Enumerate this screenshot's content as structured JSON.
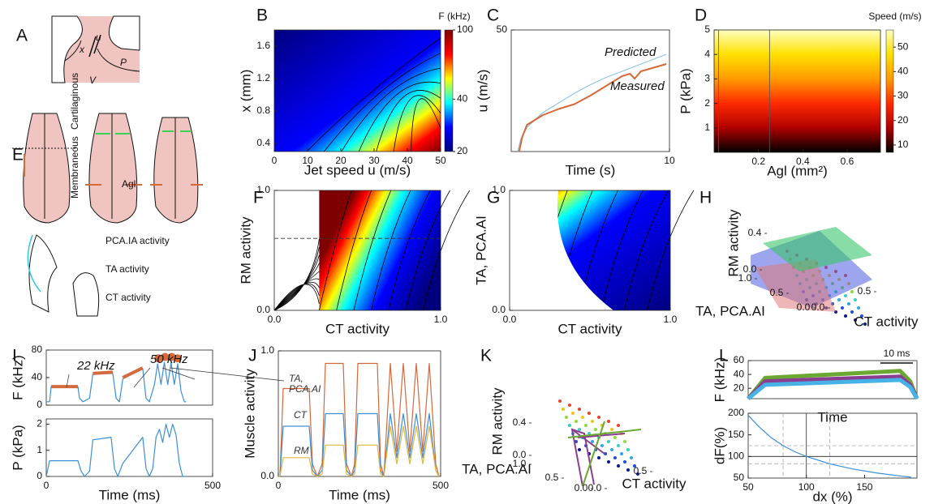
{
  "chart_data": [
    {
      "type": "diagram",
      "panel": "A",
      "labels": [
        "x",
        "u",
        "P",
        "V"
      ]
    },
    {
      "type": "heatmap",
      "panel": "B",
      "xlabel": "Jet speed u (m/s)",
      "ylabel": "x (mm)",
      "xlim": [
        0,
        50
      ],
      "ylim": [
        0.3,
        1.8
      ],
      "xticks": [
        0,
        10,
        20,
        30,
        40,
        50
      ],
      "yticks": [
        0.4,
        0.8,
        1.2,
        1.6
      ],
      "colormap": "jet",
      "colorbar_title": "F (kHz)",
      "clim": [
        20,
        100
      ],
      "clog": true,
      "cticks": [
        20,
        40,
        100
      ]
    },
    {
      "type": "line",
      "panel": "C",
      "xlabel": "Time (s)",
      "ylabel": "u (m/s)",
      "xlim": [
        0,
        10
      ],
      "ylim": [
        0,
        50
      ],
      "xticks": [
        10
      ],
      "yticks": [
        50
      ],
      "series": [
        {
          "name": "Predicted",
          "color": "#8cc4e8",
          "width": 1.2,
          "x": [
            0.4,
            0.6,
            1,
            2,
            3,
            4,
            5,
            6,
            7,
            8,
            9,
            9.8
          ],
          "values": [
            0,
            5,
            10,
            16,
            20,
            24,
            27.5,
            30.5,
            33,
            35.5,
            38,
            40
          ]
        },
        {
          "name": "Measured",
          "color": "#d4693a",
          "width": 2,
          "x": [
            0.5,
            0.7,
            1,
            2,
            3,
            4,
            5,
            6,
            7,
            7.5,
            7.8,
            8.2,
            9,
            9.8
          ],
          "values": [
            0,
            6,
            11,
            15,
            17.5,
            19.5,
            23,
            27,
            31,
            32,
            30,
            33,
            34.5,
            36
          ]
        }
      ]
    },
    {
      "type": "heatmap",
      "panel": "D",
      "xlabel": "Agl (mm²)",
      "ylabel": "P (kPa)",
      "xlim": [
        0,
        0.75
      ],
      "ylim": [
        0,
        5
      ],
      "xticks": [
        0.2,
        0.4,
        0.6
      ],
      "yticks": [
        1,
        2,
        3,
        4,
        5
      ],
      "colormap": "hot",
      "colorbar_title": "Speed (m/s)",
      "clim": [
        7,
        57
      ],
      "clog": false,
      "cticks": [
        10,
        20,
        30,
        40,
        50
      ],
      "vlines": [
        0.02,
        0.25
      ]
    },
    {
      "type": "diagram",
      "panel": "E",
      "labels": [
        "Cartilaginous",
        "Membraneous",
        "Agl",
        "PCA.IA activity",
        "TA activity",
        "CT activity"
      ],
      "label_colors": [
        null,
        null,
        null,
        "#39d353",
        "#d4693a",
        "#2fc7e6"
      ]
    },
    {
      "type": "heatmap",
      "panel": "F",
      "xlabel": "CT activity",
      "ylabel": "RM activity",
      "xlim": [
        0,
        1
      ],
      "ylim": [
        0,
        1
      ],
      "xticks": [
        {
          "value": 0,
          "label": "0.0"
        },
        {
          "value": 1,
          "label": "1.0"
        }
      ],
      "yticks": [
        {
          "value": 0,
          "label": "0.0"
        },
        {
          "value": 1,
          "label": "1.0"
        }
      ],
      "colormap": "jet",
      "hlines": [
        0.6
      ]
    },
    {
      "type": "heatmap",
      "panel": "G",
      "xlabel": "CT activity",
      "ylabel": "TA, PCA.AI",
      "xlim": [
        0,
        1
      ],
      "ylim": [
        0,
        1
      ],
      "xticks": [
        {
          "value": 0,
          "label": "0.0"
        },
        {
          "value": 1,
          "label": "1.0"
        }
      ],
      "yticks": [
        {
          "value": 0,
          "label": "0.0"
        },
        {
          "value": 1,
          "label": "1.0"
        }
      ],
      "colormap": "jet"
    },
    {
      "type": "surface3d",
      "panel": "H",
      "zlabel": "RM activity",
      "ylabel": "TA, PCA.AI",
      "xlabel": "CT activity",
      "zticks": [
        {
          "value": 0,
          "label": "0.0"
        },
        0.4
      ],
      "yticks": [
        {
          "value": 1,
          "label": "1.0"
        },
        0.5,
        {
          "value": 0,
          "label": "0.0"
        }
      ],
      "xticks": [
        {
          "value": 0,
          "label": "0.0"
        },
        0.5
      ]
    },
    {
      "type": "line",
      "panel": "I",
      "ylabel": "F (kHz)",
      "xlim": [
        0,
        500
      ],
      "ylim": [
        0,
        80
      ],
      "yticks": [
        0,
        40,
        80
      ],
      "annotations": [
        "22 kHz",
        "50 kHz"
      ],
      "series": [
        {
          "color": "#3b8fd6",
          "width": 1.2,
          "x": [
            0,
            10,
            15,
            95,
            100,
            110,
            130,
            140,
            200,
            210,
            220,
            230,
            290,
            300,
            310,
            325,
            335,
            345,
            355,
            365,
            375,
            385,
            395,
            405,
            415,
            420
          ],
          "values": [
            5,
            5,
            27,
            27,
            10,
            5,
            10,
            45,
            46,
            10,
            5,
            38,
            53,
            10,
            5,
            30,
            60,
            30,
            62,
            30,
            62,
            30,
            60,
            20,
            5,
            5
          ]
        },
        {
          "color": "#d4693a",
          "width": 4,
          "x": [
            15,
            95,
            96,
            140,
            200,
            201,
            230,
            290
          ],
          "values": [
            27,
            27,
            null,
            46,
            48,
            null,
            40,
            54
          ]
        },
        {
          "color": "#d4693a",
          "markers": true,
          "x": [
            337,
            357,
            377,
            395
          ],
          "values": [
            68,
            70,
            70,
            68
          ]
        }
      ]
    },
    {
      "type": "line",
      "ylabel": "P (kPa)",
      "xlabel": "Time (ms)",
      "xlim": [
        0,
        500
      ],
      "ylim": [
        0,
        2.2
      ],
      "xticks": [
        0,
        500
      ],
      "yticks": [
        0,
        1,
        2
      ],
      "series": [
        {
          "color": "#3b8fd6",
          "width": 1.2,
          "x": [
            0,
            10,
            20,
            95,
            105,
            115,
            130,
            140,
            195,
            205,
            215,
            230,
            290,
            300,
            310,
            320,
            330,
            340,
            350,
            360,
            370,
            380,
            390,
            400,
            410,
            420
          ],
          "values": [
            0,
            0.6,
            0.6,
            0.6,
            0.2,
            0,
            0.2,
            1.4,
            1.5,
            0.3,
            0,
            0.5,
            1.5,
            0.3,
            0,
            0.3,
            1.5,
            1.8,
            1.3,
            2.0,
            1.5,
            2.0,
            1.6,
            0.5,
            0,
            0
          ]
        }
      ]
    },
    {
      "type": "line",
      "panel": "J",
      "ylabel": "Muscle activity",
      "xlabel": "Time (ms)",
      "xlim": [
        0,
        500
      ],
      "ylim": [
        0,
        1
      ],
      "xticks": [
        0,
        500
      ],
      "yticks": [
        {
          "value": 0,
          "label": "0.0"
        },
        {
          "value": 1,
          "label": "1.0"
        }
      ],
      "x": [
        0,
        5,
        15,
        95,
        105,
        120,
        135,
        145,
        200,
        210,
        225,
        235,
        245,
        305,
        315,
        325,
        345,
        365,
        385,
        405,
        425,
        445,
        465,
        485,
        495
      ],
      "series": [
        {
          "name": "TA, PCA.AI",
          "color": "#d4693a",
          "width": 1.2,
          "values": [
            0,
            0,
            0.7,
            0.7,
            0.1,
            0,
            0.1,
            0.9,
            0.9,
            0.1,
            0,
            0.1,
            0.9,
            0.9,
            0.1,
            0,
            0.9,
            0.2,
            0.9,
            0.2,
            0.9,
            0.2,
            0.9,
            0.1,
            0
          ]
        },
        {
          "name": "CT",
          "color": "#3b8fd6",
          "width": 1.2,
          "values": [
            0,
            0,
            0.4,
            0.4,
            0.05,
            0,
            0.05,
            0.5,
            0.5,
            0.05,
            0,
            0.05,
            0.5,
            0.5,
            0.05,
            0,
            0.5,
            0.15,
            0.5,
            0.15,
            0.5,
            0.15,
            0.5,
            0.05,
            0
          ]
        },
        {
          "name": "RM",
          "color": "#e3b33b",
          "width": 1.2,
          "values": [
            0,
            0,
            0.15,
            0.15,
            0.02,
            0,
            0.02,
            0.25,
            0.25,
            0.02,
            0,
            0.02,
            0.25,
            0.25,
            0.02,
            0,
            0.4,
            0.1,
            0.4,
            0.1,
            0.4,
            0.1,
            0.4,
            0.05,
            0
          ]
        }
      ]
    },
    {
      "type": "surface3d",
      "panel": "K",
      "zlabel": "RM activity",
      "ylabel": "TA, PCA.AI",
      "xlabel": "CT activity",
      "zticks": [
        {
          "value": 0,
          "label": "0.0"
        },
        0.4
      ],
      "yticks": [
        {
          "value": 1,
          "label": "1.0"
        },
        0.5,
        {
          "value": 0,
          "label": "0.0"
        }
      ],
      "xticks": [
        {
          "value": 0,
          "label": "0.0"
        },
        0.5
      ]
    },
    {
      "type": "line",
      "panel": "L",
      "ylabel": "F (kHz)",
      "xlabel": "Time",
      "scalebar_label": "10 ms",
      "xlim": [
        0,
        1
      ],
      "ylim": [
        5,
        60
      ],
      "yticks": [
        20,
        40,
        60
      ],
      "x": [
        0,
        0.1,
        0.9,
        0.96,
        1
      ],
      "series": [
        {
          "color": "#6aa832",
          "width": 5,
          "values": [
            5,
            35,
            45,
            30,
            5
          ]
        },
        {
          "color": "#8a3d91",
          "width": 5,
          "values": [
            5,
            30,
            37,
            25,
            5
          ]
        },
        {
          "color": "#47b2e6",
          "width": 5,
          "values": [
            5,
            25,
            32,
            22,
            5
          ]
        }
      ]
    },
    {
      "type": "line",
      "ylabel": "dF(%)",
      "xlabel": "dx (%)",
      "xlim": [
        50,
        195
      ],
      "ylim": [
        50,
        200
      ],
      "xticks": [
        50,
        100,
        150
      ],
      "yticks": [
        50,
        100,
        150,
        200
      ],
      "vlines": [
        80,
        100,
        120
      ],
      "hlines": [
        83,
        100,
        125
      ],
      "series": [
        {
          "color": "#3b8fd6",
          "width": 1.2,
          "x": [
            50,
            60,
            70,
            80,
            90,
            100,
            120,
            140,
            160,
            180,
            190
          ],
          "values": [
            195,
            167,
            143,
            125,
            111,
            100,
            83,
            71,
            62,
            55,
            52
          ]
        }
      ]
    }
  ]
}
